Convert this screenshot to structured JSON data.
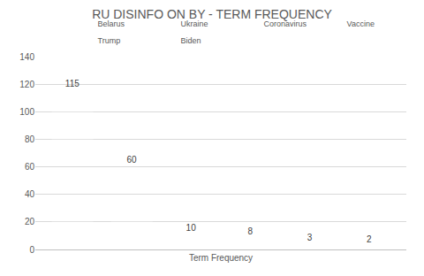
{
  "chart_data": {
    "type": "bar",
    "title": "RU DISINFO ON BY - TERM FREQUENCY",
    "categories": [
      "Term Frequency"
    ],
    "series": [
      {
        "name": "Belarus",
        "color": "#4472c4",
        "values": [
          115
        ]
      },
      {
        "name": "Ukraine",
        "color": "#ed7d31",
        "values": [
          60
        ]
      },
      {
        "name": "Coronavirus",
        "color": "#a5a5a5",
        "values": [
          10
        ]
      },
      {
        "name": "Vaccine",
        "color": "#ffc000",
        "values": [
          8
        ]
      },
      {
        "name": "Trump",
        "color": "#5b9bd5",
        "values": [
          3
        ]
      },
      {
        "name": "Biden",
        "color": "#70ad47",
        "values": [
          2
        ]
      }
    ],
    "ylim": [
      0,
      140
    ],
    "yticks": [
      0,
      20,
      40,
      60,
      80,
      100,
      120,
      140
    ],
    "grid": true,
    "legend": "top",
    "data_labels": true
  }
}
